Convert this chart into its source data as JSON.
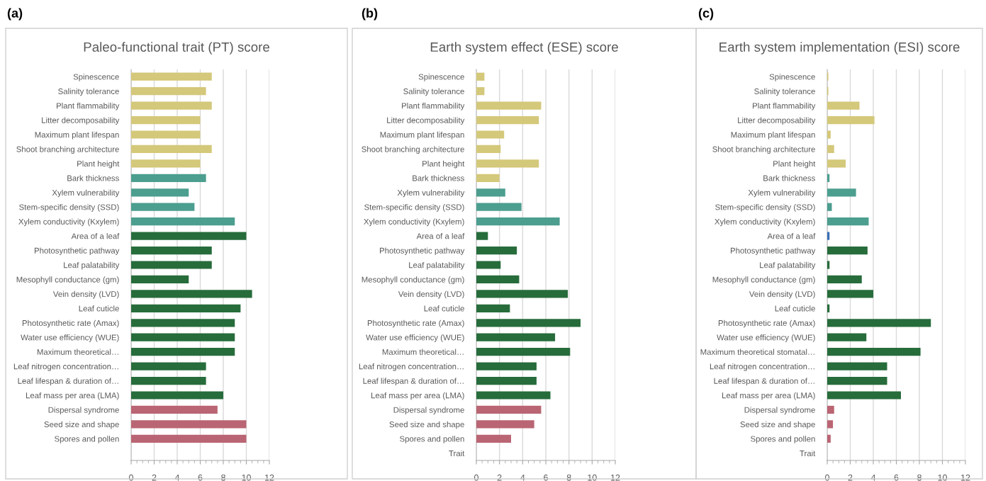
{
  "chart_data": [
    {
      "type": "bar",
      "orientation": "horizontal",
      "title": "Paleo-functional trait (PT) score",
      "annotations": [
        "(a)"
      ],
      "grid": "x",
      "xlim": [
        0,
        12
      ],
      "xticks": [
        0,
        2,
        4,
        6,
        8,
        10,
        12
      ],
      "categories": [
        "Spinescence",
        "Salinity tolerance",
        "Plant flammability",
        "Litter decomposability",
        "Maximum plant lifespan",
        "Shoot branching architecture",
        "Plant height",
        "Bark thickness",
        "Xylem vulnerability",
        "Stem-specific density (SSD)",
        "Xylem conductivity (Kxylem)",
        "Area of a leaf",
        "Photosynthetic pathway",
        "Leaf palatability",
        "Mesophyll conductance (gm)",
        "Vein density (LVD)",
        "Leaf cuticle",
        "Photosynthetic rate (Amax)",
        "Water use efficiency (WUE)",
        "Maximum theoretical…",
        "Leaf nitrogen concentration…",
        "Leaf lifespan & duration of…",
        "Leaf mass per area (LMA)",
        "Dispersal syndrome",
        "Seed size and shape",
        "Spores and pollen",
        null
      ],
      "values": [
        7,
        6.5,
        7,
        6,
        6,
        7,
        6,
        6.5,
        5,
        5.5,
        9,
        10,
        7,
        7,
        5,
        10.5,
        9.5,
        9,
        9,
        9,
        6.5,
        6.5,
        8,
        7.5,
        10,
        10,
        null
      ],
      "colors": [
        "#d4c87a",
        "#d4c87a",
        "#d4c87a",
        "#d4c87a",
        "#d4c87a",
        "#d4c87a",
        "#d4c87a",
        "#4c9e8f",
        "#4c9e8f",
        "#4c9e8f",
        "#4c9e8f",
        "#276c3b",
        "#276c3b",
        "#276c3b",
        "#276c3b",
        "#276c3b",
        "#276c3b",
        "#276c3b",
        "#276c3b",
        "#276c3b",
        "#276c3b",
        "#276c3b",
        "#276c3b",
        "#ba6573",
        "#ba6573",
        "#ba6573",
        "#276c3b"
      ]
    },
    {
      "type": "bar",
      "orientation": "horizontal",
      "title": "Earth system effect (ESE) score",
      "annotations": [
        "(b)"
      ],
      "grid": "x",
      "xlim": [
        0,
        12
      ],
      "xticks": [
        0,
        2,
        4,
        6,
        8,
        10,
        12
      ],
      "categories": [
        "Spinescence",
        "Salinity tolerance",
        "Plant flammability",
        "Litter decomposability",
        "Maximum plant lifespan",
        "Shoot branching architecture",
        "Plant height",
        "Bark thickness",
        "Xylem vulnerability",
        "Stem-specific density (SSD)",
        "Xylem conductivity (Kxylem)",
        "Area of a leaf",
        "Photosynthetic pathway",
        "Leaf palatability",
        "Mesophyll conductance (gm)",
        "Vein density (LVD)",
        "Leaf cuticle",
        "Photosynthetic rate (Amax)",
        "Water use efficiency (WUE)",
        "Maximum theoretical…",
        "Leaf nitrogen concentration…",
        "Leaf lifespan & duration of…",
        "Leaf mass per area (LMA)",
        "Dispersal syndrome",
        "Seed size and shape",
        "Spores and pollen",
        "Trait"
      ],
      "values": [
        0.7,
        0.7,
        5.6,
        5.4,
        2.4,
        2.1,
        5.4,
        2.0,
        2.5,
        3.9,
        7.2,
        1.0,
        3.5,
        2.1,
        3.7,
        7.9,
        2.9,
        9.0,
        6.8,
        8.1,
        5.2,
        5.2,
        6.4,
        5.6,
        5.0,
        3.0,
        null
      ],
      "colors": [
        "#d4c87a",
        "#d4c87a",
        "#d4c87a",
        "#d4c87a",
        "#d4c87a",
        "#d4c87a",
        "#d4c87a",
        "#d4c87a",
        "#4c9e8f",
        "#4c9e8f",
        "#4c9e8f",
        "#276c3b",
        "#276c3b",
        "#276c3b",
        "#276c3b",
        "#276c3b",
        "#276c3b",
        "#276c3b",
        "#276c3b",
        "#276c3b",
        "#276c3b",
        "#276c3b",
        "#276c3b",
        "#ba6573",
        "#ba6573",
        "#ba6573",
        "#276c3b"
      ]
    },
    {
      "type": "bar",
      "orientation": "horizontal",
      "title": "Earth system implementation (ESI) score",
      "annotations": [
        "(c)"
      ],
      "grid": "x",
      "xlim": [
        0,
        12
      ],
      "xticks": [
        0,
        2,
        4,
        6,
        8,
        10,
        12
      ],
      "categories": [
        "Spinescence",
        "Salinity tolerance",
        "Plant flammability",
        "Litter decomposability",
        "Maximum plant lifespan",
        "Shoot branching architecture",
        "Plant height",
        "Bark thickness",
        "Xylem vulnerability",
        "Stem-specific density (SSD)",
        "Xylem conductivity (Kxylem)",
        "Area of a leaf",
        "Photosynthetic pathway",
        "Leaf palatability",
        "Mesophyll conductance (gm)",
        "Vein density (LVD)",
        "Leaf cuticle",
        "Photosynthetic rate (Amax)",
        "Water use efficiency (WUE)",
        "Maximum theoretical stomatal…",
        "Leaf nitrogen concentration…",
        "Leaf lifespan & duration of…",
        "Leaf mass per area (LMA)",
        "Dispersal syndrome",
        "Seed size and shape",
        "Spores and pollen",
        "Trait"
      ],
      "values": [
        0.1,
        0.1,
        2.8,
        4.1,
        0.3,
        0.6,
        1.6,
        0.2,
        2.5,
        0.4,
        3.6,
        0.2,
        3.5,
        0.2,
        3.0,
        4.0,
        0.2,
        9.0,
        3.4,
        8.1,
        5.2,
        5.2,
        6.4,
        0.6,
        0.5,
        0.3,
        null
      ],
      "colors": [
        "#d4c87a",
        "#d4c87a",
        "#d4c87a",
        "#d4c87a",
        "#d4c87a",
        "#d4c87a",
        "#d4c87a",
        "#4c9e8f",
        "#4c9e8f",
        "#4c9e8f",
        "#4c9e8f",
        "#3a6fb5",
        "#276c3b",
        "#276c3b",
        "#276c3b",
        "#276c3b",
        "#276c3b",
        "#276c3b",
        "#276c3b",
        "#276c3b",
        "#276c3b",
        "#276c3b",
        "#276c3b",
        "#ba6573",
        "#ba6573",
        "#ba6573",
        "#276c3b"
      ]
    }
  ]
}
